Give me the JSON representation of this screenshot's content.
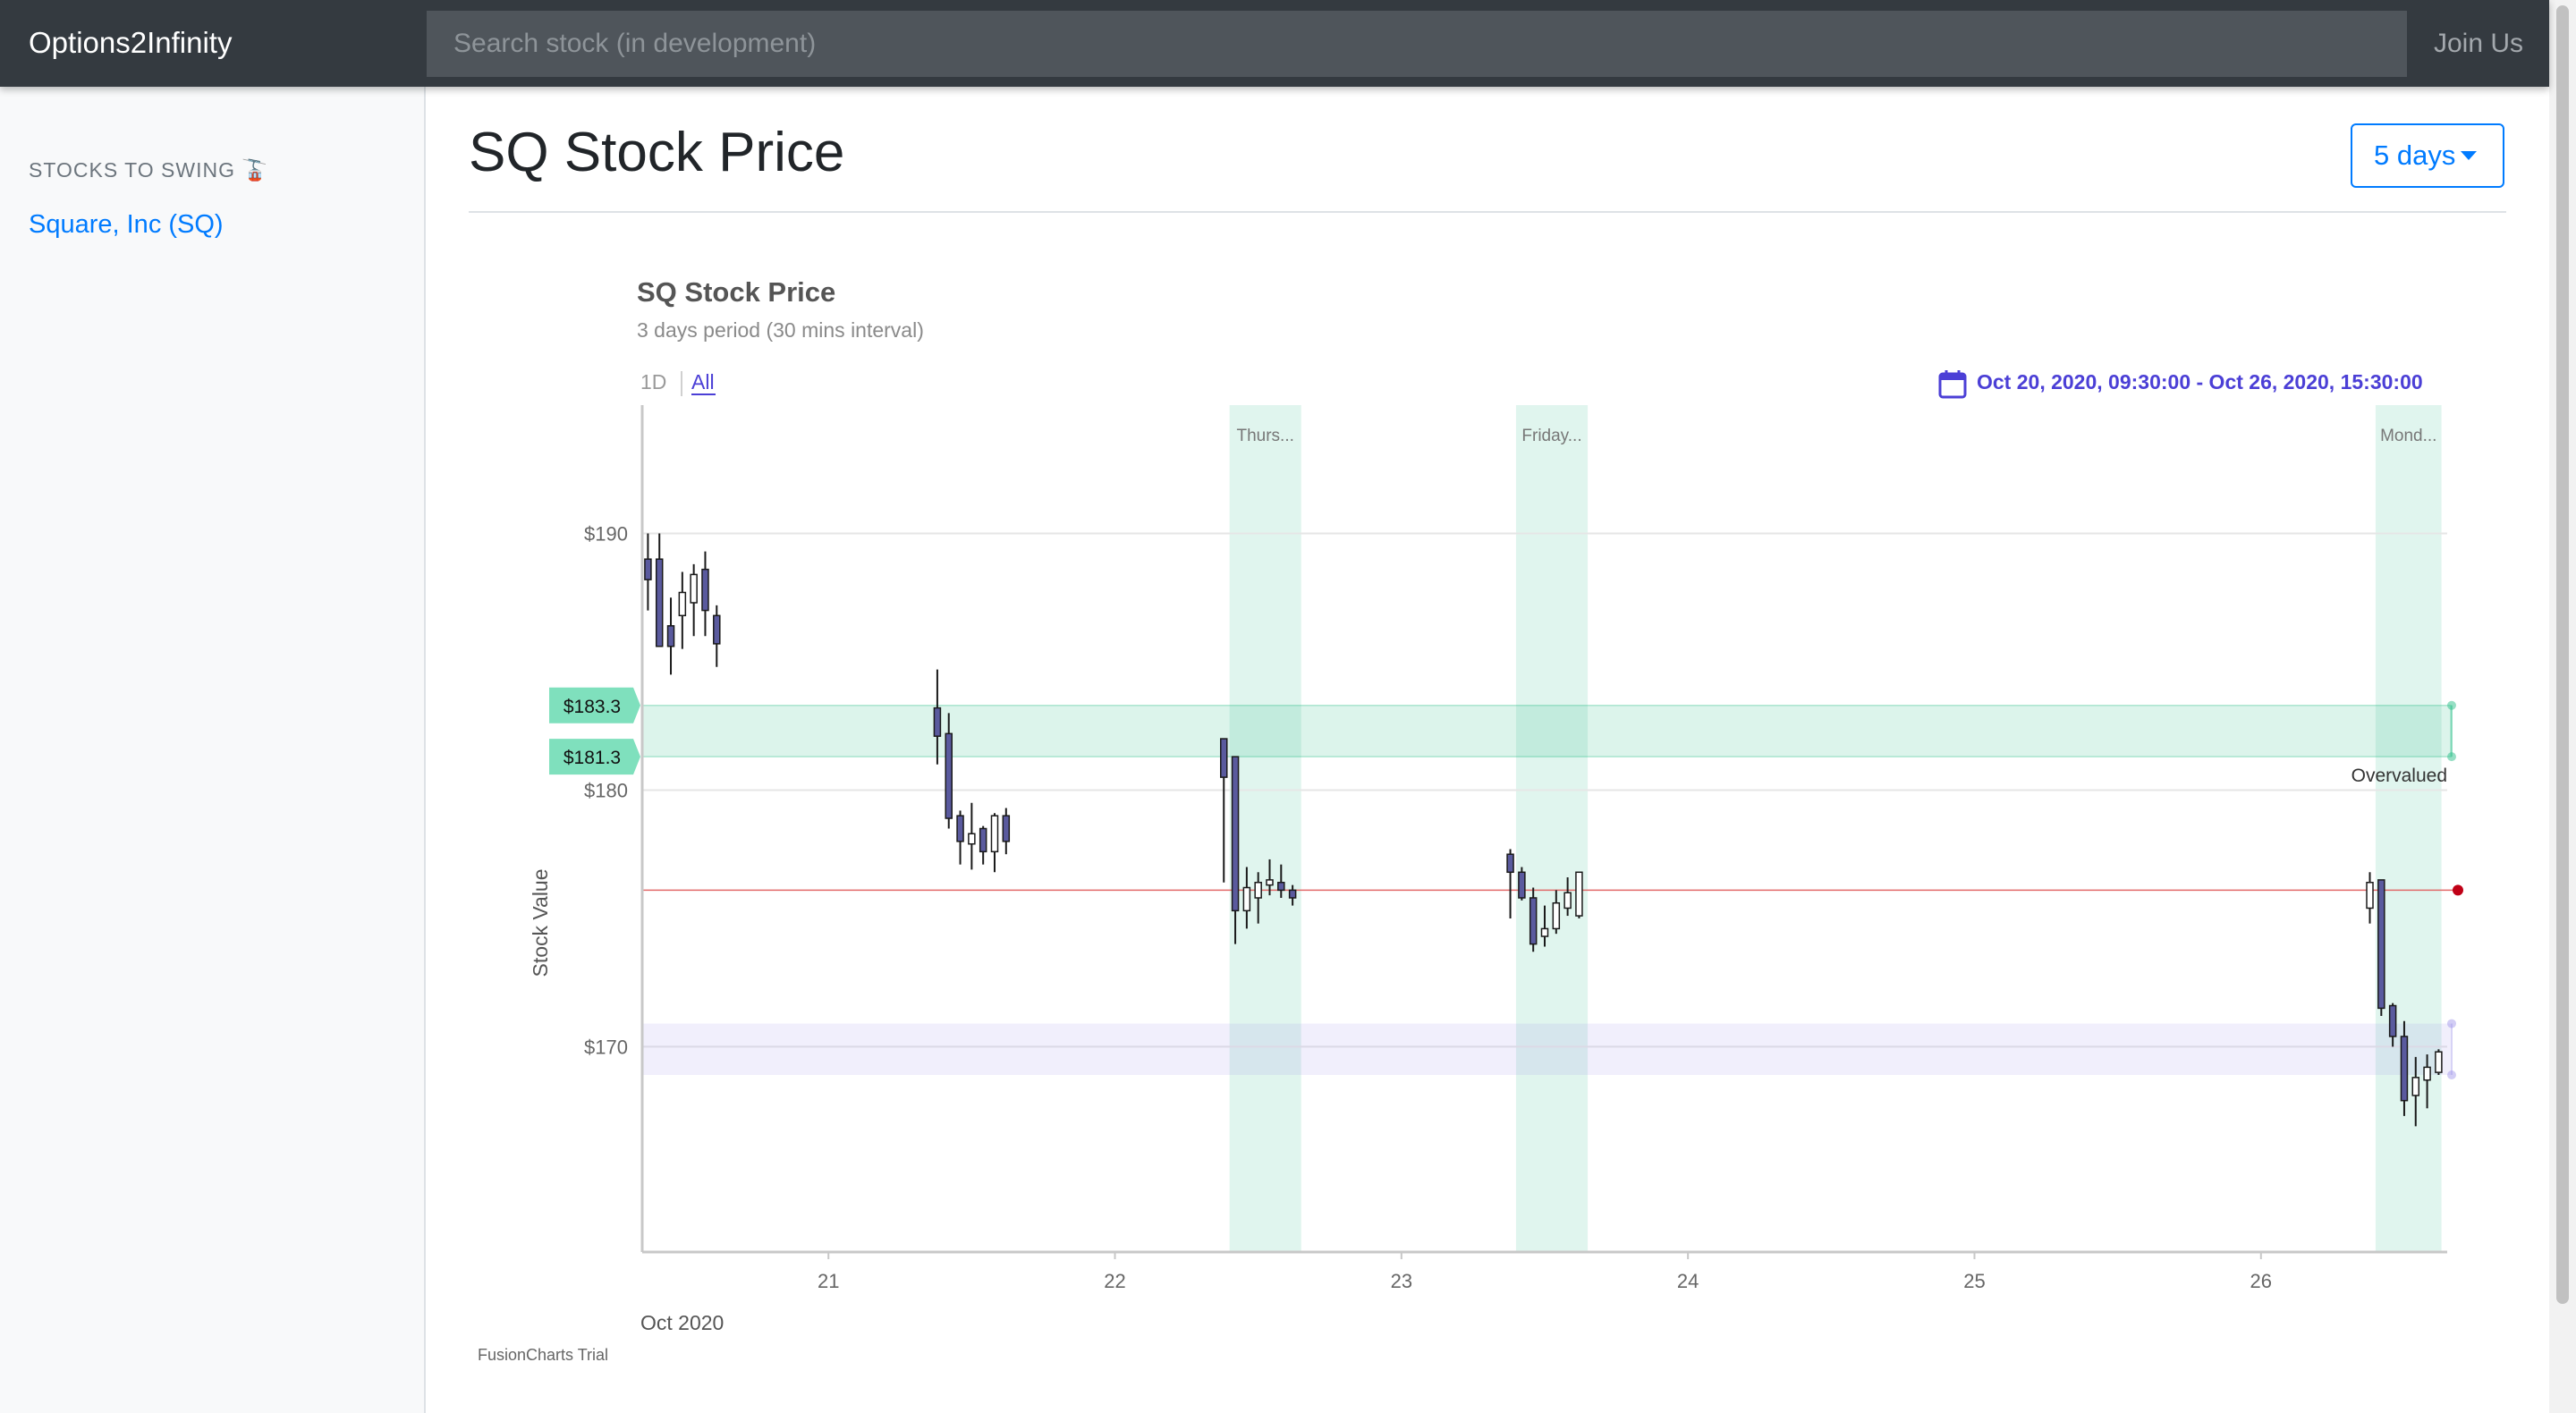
{
  "navbar": {
    "brand": "Options2Infinity",
    "search_placeholder": "Search stock (in development)",
    "join_label": "Join Us",
    "bg_color": "#343a40"
  },
  "sidebar": {
    "heading": "STOCKS TO SWING 🚡",
    "items": [
      {
        "label": "Square, Inc (SQ)"
      }
    ]
  },
  "main": {
    "title": "SQ Stock Price",
    "period_selected": "5 days"
  },
  "chart_data": {
    "type": "candlestick",
    "title": "SQ Stock Price",
    "subtitle": "3 days period (30 mins interval)",
    "range_buttons": [
      "1D",
      "All"
    ],
    "active_range": "All",
    "date_range": "Oct 20, 2020, 09:30:00 - Oct 26, 2020, 15:30:00",
    "ylabel": "Stock Value",
    "ylim": [
      162,
      195
    ],
    "yticks": [
      {
        "value": 190,
        "label": "$190"
      },
      {
        "value": 180,
        "label": "$180"
      },
      {
        "value": 170,
        "label": "$170"
      }
    ],
    "xlim": [
      20.35,
      26.65
    ],
    "xticks": [
      {
        "value": 21,
        "label": "21"
      },
      {
        "value": 22,
        "label": "22"
      },
      {
        "value": 23,
        "label": "23"
      },
      {
        "value": 24,
        "label": "24"
      },
      {
        "value": 25,
        "label": "25"
      },
      {
        "value": 26,
        "label": "26"
      }
    ],
    "month_label": "Oct 2020",
    "day_bands": [
      {
        "from": 22.4,
        "to": 22.65,
        "label": "Thurs..."
      },
      {
        "from": 23.4,
        "to": 23.65,
        "label": "Friday..."
      },
      {
        "from": 26.4,
        "to": 26.63,
        "label": "Mond..."
      }
    ],
    "overvalued_band": {
      "from": 181.3,
      "to": 183.3,
      "label": "Overvalued",
      "labels": [
        "$183.3",
        "$181.3"
      ]
    },
    "support_band": {
      "from": 168.9,
      "to": 170.9
    },
    "reference_line": 176.1,
    "watermark": "FusionCharts Trial",
    "candles": [
      {
        "x": 20.37,
        "o": 189.0,
        "h": 190.0,
        "l": 187.0,
        "c": 188.2
      },
      {
        "x": 20.41,
        "o": 189.0,
        "h": 190.0,
        "l": 185.6,
        "c": 185.6
      },
      {
        "x": 20.45,
        "o": 186.4,
        "h": 187.5,
        "l": 184.5,
        "c": 185.6
      },
      {
        "x": 20.49,
        "o": 186.8,
        "h": 188.5,
        "l": 185.5,
        "c": 187.7
      },
      {
        "x": 20.53,
        "o": 187.3,
        "h": 188.8,
        "l": 186.0,
        "c": 188.4
      },
      {
        "x": 20.57,
        "o": 188.6,
        "h": 189.3,
        "l": 186.0,
        "c": 187.0
      },
      {
        "x": 20.61,
        "o": 186.8,
        "h": 187.2,
        "l": 184.8,
        "c": 185.7
      },
      {
        "x": 21.38,
        "o": 183.2,
        "h": 184.7,
        "l": 181.0,
        "c": 182.1
      },
      {
        "x": 21.42,
        "o": 182.2,
        "h": 183.0,
        "l": 178.5,
        "c": 178.9
      },
      {
        "x": 21.46,
        "o": 179.0,
        "h": 179.2,
        "l": 177.1,
        "c": 178.0
      },
      {
        "x": 21.5,
        "o": 177.9,
        "h": 179.5,
        "l": 176.9,
        "c": 178.3
      },
      {
        "x": 21.54,
        "o": 178.5,
        "h": 178.6,
        "l": 177.1,
        "c": 177.6
      },
      {
        "x": 21.58,
        "o": 177.6,
        "h": 179.1,
        "l": 176.8,
        "c": 179.0
      },
      {
        "x": 21.62,
        "o": 179.0,
        "h": 179.3,
        "l": 177.5,
        "c": 178.0
      },
      {
        "x": 22.38,
        "o": 182.0,
        "h": 182.0,
        "l": 176.4,
        "c": 180.5
      },
      {
        "x": 22.42,
        "o": 181.3,
        "h": 181.3,
        "l": 174.0,
        "c": 175.3
      },
      {
        "x": 22.46,
        "o": 175.3,
        "h": 177.0,
        "l": 174.6,
        "c": 176.2
      },
      {
        "x": 22.5,
        "o": 175.8,
        "h": 176.8,
        "l": 174.8,
        "c": 176.4
      },
      {
        "x": 22.54,
        "o": 176.3,
        "h": 177.3,
        "l": 175.9,
        "c": 176.5
      },
      {
        "x": 22.58,
        "o": 176.4,
        "h": 177.1,
        "l": 175.8,
        "c": 176.1
      },
      {
        "x": 22.62,
        "o": 176.1,
        "h": 176.3,
        "l": 175.5,
        "c": 175.8
      },
      {
        "x": 23.38,
        "o": 177.5,
        "h": 177.7,
        "l": 175.0,
        "c": 176.8
      },
      {
        "x": 23.42,
        "o": 176.8,
        "h": 177.0,
        "l": 175.7,
        "c": 175.8
      },
      {
        "x": 23.46,
        "o": 175.8,
        "h": 176.2,
        "l": 173.7,
        "c": 174.0
      },
      {
        "x": 23.5,
        "o": 174.3,
        "h": 175.5,
        "l": 173.9,
        "c": 174.6
      },
      {
        "x": 23.54,
        "o": 174.6,
        "h": 176.1,
        "l": 174.4,
        "c": 175.6
      },
      {
        "x": 23.58,
        "o": 175.4,
        "h": 176.6,
        "l": 175.1,
        "c": 176.0
      },
      {
        "x": 23.62,
        "o": 175.1,
        "h": 176.8,
        "l": 175.0,
        "c": 176.8
      },
      {
        "x": 26.38,
        "o": 175.4,
        "h": 176.8,
        "l": 174.8,
        "c": 176.4
      },
      {
        "x": 26.42,
        "o": 176.5,
        "h": 176.5,
        "l": 171.2,
        "c": 171.5
      },
      {
        "x": 26.46,
        "o": 171.6,
        "h": 171.7,
        "l": 170.0,
        "c": 170.4
      },
      {
        "x": 26.5,
        "o": 170.4,
        "h": 171.0,
        "l": 167.3,
        "c": 167.9
      },
      {
        "x": 26.54,
        "o": 168.1,
        "h": 169.6,
        "l": 166.9,
        "c": 168.8
      },
      {
        "x": 26.58,
        "o": 168.7,
        "h": 169.7,
        "l": 167.6,
        "c": 169.2
      },
      {
        "x": 26.62,
        "o": 169.0,
        "h": 169.9,
        "l": 168.9,
        "c": 169.8
      }
    ],
    "colors": {
      "up": "#ffffff",
      "down": "#5a5a9e",
      "band": "#2dbf8a",
      "support": "#9b91e8",
      "ref_line": "#e26a6a",
      "ref_dot": "#c00016",
      "date_text": "#4b3fd6"
    }
  }
}
